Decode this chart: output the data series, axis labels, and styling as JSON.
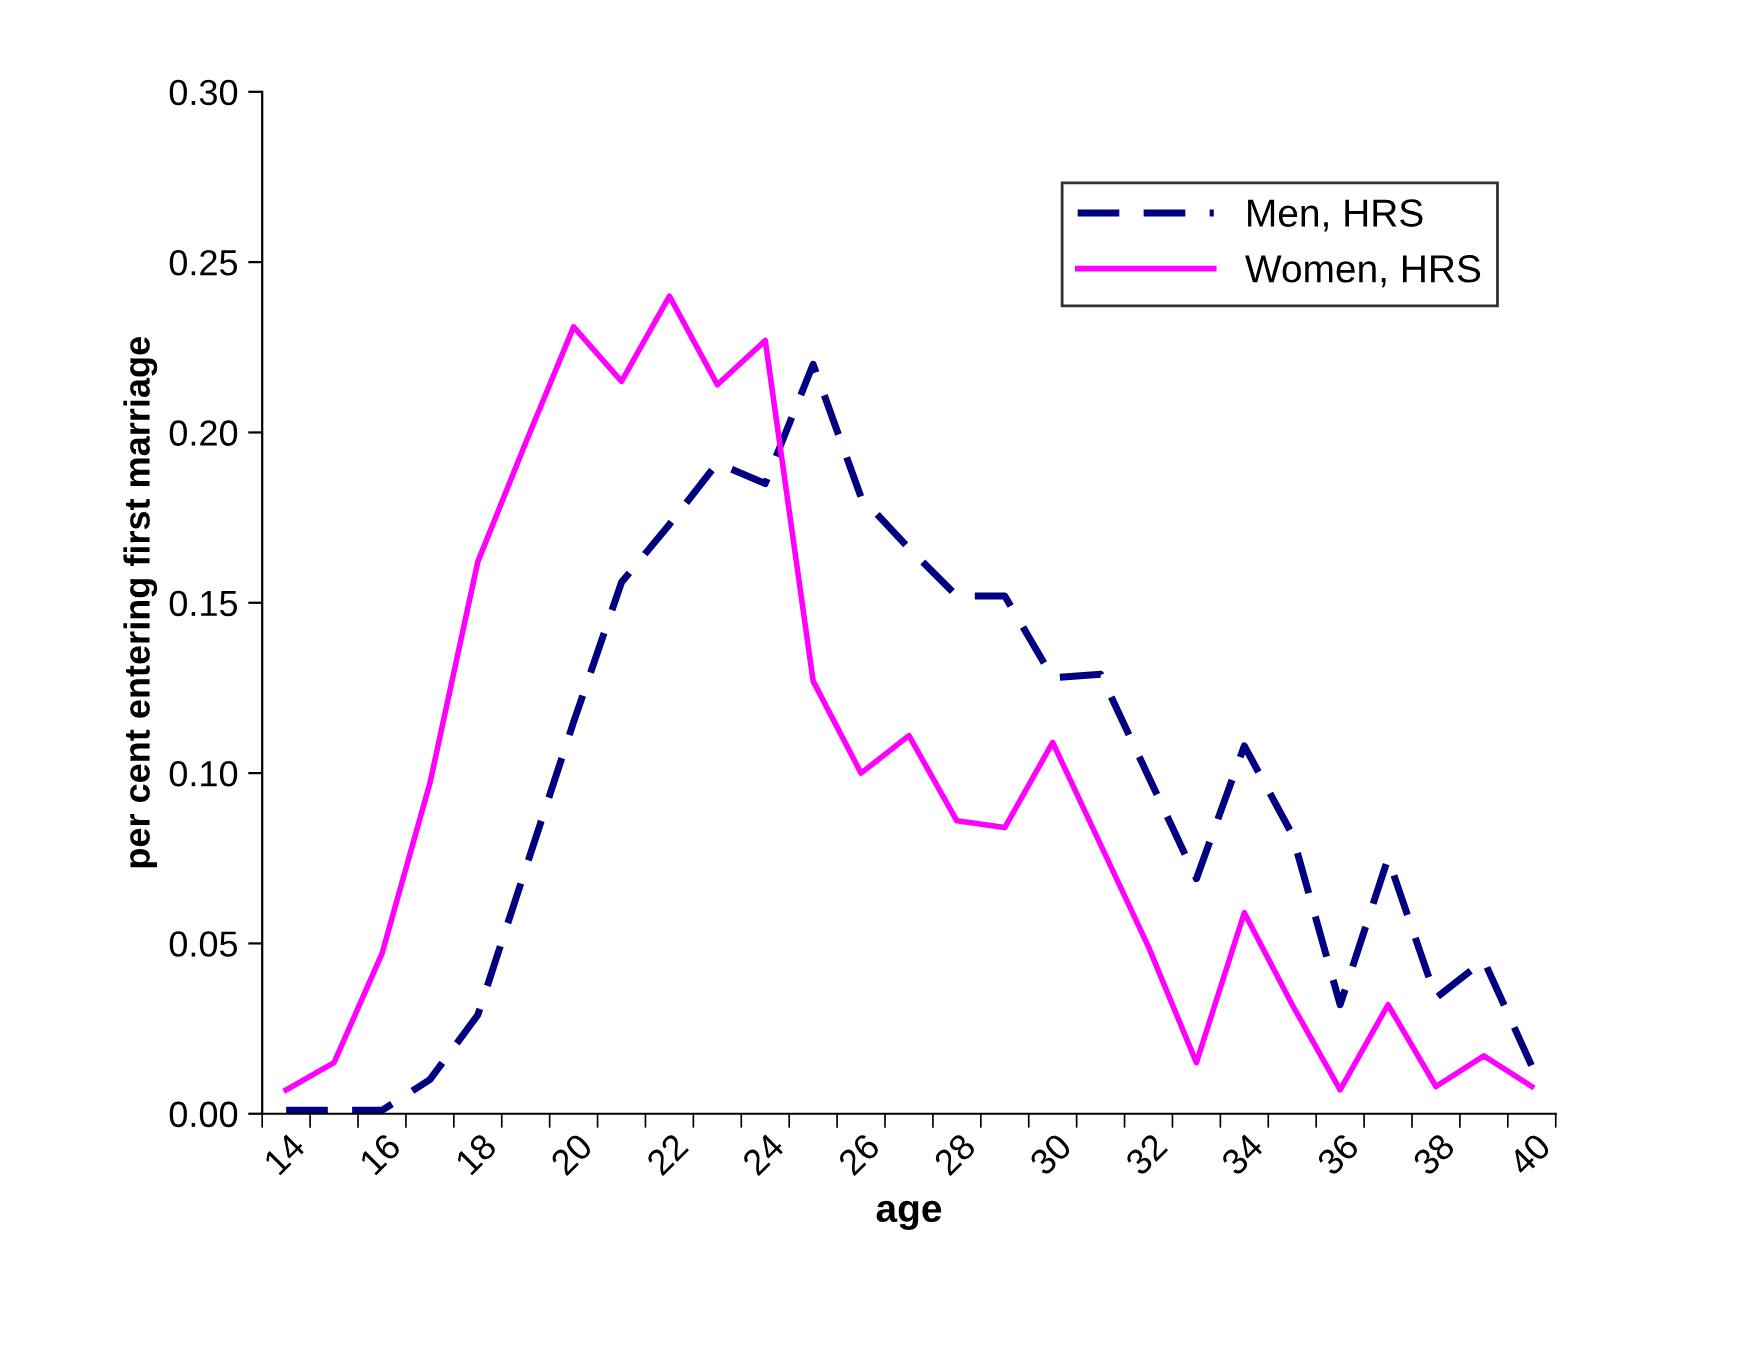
{
  "chart_data": {
    "type": "line",
    "xlabel": "age",
    "ylabel": "per cent entering first marriage",
    "categories": [
      "14",
      null,
      "16",
      null,
      "18",
      null,
      "20",
      null,
      "22",
      null,
      "24",
      null,
      "26",
      null,
      "28",
      null,
      "30",
      null,
      "32",
      null,
      "34",
      null,
      "36",
      null,
      "38",
      null,
      "40"
    ],
    "series": [
      {
        "name": "Men, HRS",
        "color": "#000080",
        "line_style": "dashed",
        "values": [
          0.001,
          0.001,
          0.001,
          0.01,
          0.029,
          0.072,
          0.115,
          0.156,
          0.173,
          0.191,
          0.185,
          0.22,
          0.181,
          0.166,
          0.152,
          0.152,
          0.128,
          0.129,
          0.099,
          0.069,
          0.108,
          0.082,
          0.032,
          0.075,
          0.034,
          0.045,
          0.014
        ]
      },
      {
        "name": "Women, HRS",
        "color": "#ff00ff",
        "line_style": "solid",
        "values": [
          0.007,
          0.015,
          0.047,
          0.097,
          0.162,
          0.197,
          0.231,
          0.215,
          0.24,
          0.214,
          0.227,
          0.127,
          0.1,
          0.111,
          0.086,
          0.084,
          0.109,
          0.079,
          0.049,
          0.015,
          0.059,
          0.032,
          0.007,
          0.032,
          0.008,
          0.017,
          0.008
        ]
      }
    ],
    "ylim": [
      0,
      0.3
    ],
    "yticks": [
      {
        "value": 0,
        "label": "0.00"
      },
      {
        "value": 0.05,
        "label": "0.05"
      },
      {
        "value": 0.1,
        "label": "0.10"
      },
      {
        "value": 0.15,
        "label": "0.15"
      },
      {
        "value": 0.2,
        "label": "0.20"
      },
      {
        "value": 0.25,
        "label": "0.25"
      },
      {
        "value": 0.3,
        "label": "0.30"
      }
    ],
    "grid": false,
    "legend": "top right",
    "marker": "none"
  }
}
